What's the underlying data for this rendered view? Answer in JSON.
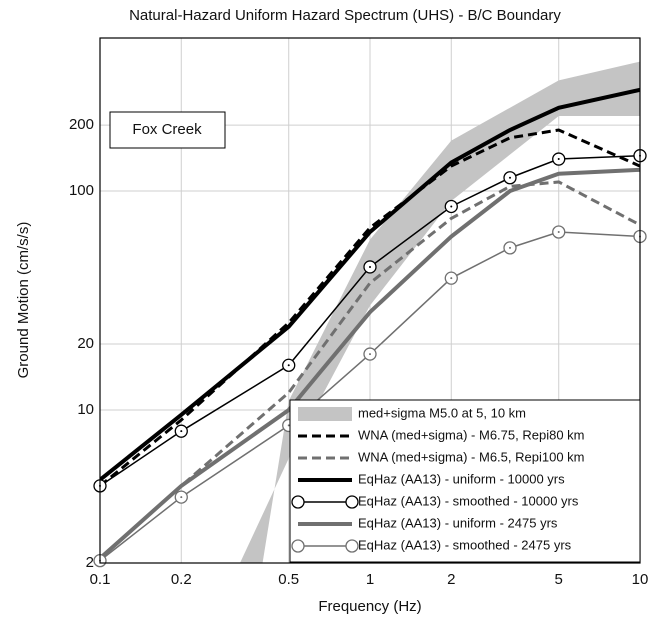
{
  "chart_data": {
    "type": "line",
    "title": "Natural-Hazard Uniform Hazard Spectrum (UHS) - B/C Boundary",
    "x_label": "Frequency (Hz)",
    "y_label": "Ground Motion (cm/s/s)",
    "annotation": "Fox Creek",
    "log_x": true,
    "log_y": true,
    "grid": true,
    "legend": "lower right",
    "xlim": [
      0.1,
      10
    ],
    "xticks": [
      0.1,
      0.2,
      0.5,
      1,
      2,
      5,
      10
    ],
    "ylim": [
      2,
      500
    ],
    "yticks": [
      2,
      10,
      20,
      100,
      200
    ],
    "band": {
      "name": "med+sigma M5.0 at 5, 10 km",
      "color": "#c4c4c4",
      "x": [
        0.33,
        0.5,
        1,
        2,
        5,
        10
      ],
      "lower": [
        2,
        6,
        30,
        90,
        220,
        220
      ],
      "x_upper": [
        0.4,
        0.5,
        1,
        2,
        5,
        10
      ],
      "upper": [
        2,
        11,
        60,
        170,
        320,
        390
      ]
    },
    "x": [
      0.1,
      0.2,
      0.5,
      1,
      2,
      3.3,
      5,
      10
    ],
    "series": [
      {
        "name": "WNA (med+sigma) - M6.75, Repi80 km",
        "color": "#000000",
        "width": 3,
        "dash": "9 5",
        "marker": false,
        "values": [
          4.5,
          9,
          25,
          68,
          130,
          175,
          190,
          130
        ]
      },
      {
        "name": "WNA (med+sigma) - M6.5, Repi100 km",
        "color": "#707070",
        "width": 3,
        "dash": "9 5",
        "marker": false,
        "values": [
          2.1,
          4.5,
          12,
          38,
          75,
          105,
          110,
          70
        ]
      },
      {
        "name": "EqHaz (AA13) - uniform - 10000 yrs",
        "color": "#000000",
        "width": 4,
        "dash": "none",
        "marker": false,
        "values": [
          4.8,
          9.5,
          24,
          65,
          135,
          190,
          240,
          290
        ]
      },
      {
        "name": "EqHaz (AA13) - smoothed - 10000 yrs",
        "color": "#000000",
        "width": 1.5,
        "dash": "none",
        "marker": true,
        "values": [
          4.5,
          8,
          16,
          45,
          85,
          115,
          140,
          145
        ]
      },
      {
        "name": "EqHaz (AA13) - uniform - 2475 yrs",
        "color": "#707070",
        "width": 4,
        "dash": "none",
        "marker": false,
        "values": [
          2.1,
          4.5,
          10,
          28,
          62,
          100,
          120,
          125
        ]
      },
      {
        "name": "EqHaz (AA13) - smoothed - 2475 yrs",
        "color": "#707070",
        "width": 1.5,
        "dash": "none",
        "marker": true,
        "values": [
          2.05,
          4,
          8.5,
          18,
          40,
          55,
          65,
          62
        ]
      }
    ]
  }
}
